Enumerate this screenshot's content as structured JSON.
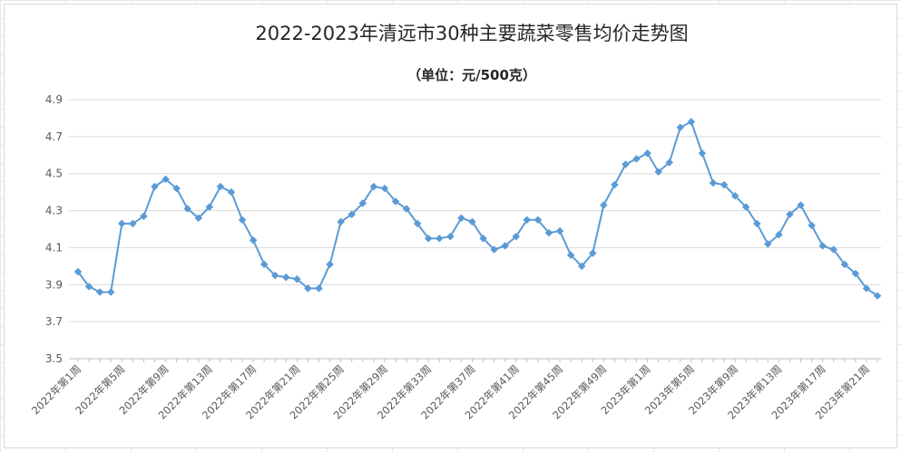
{
  "chart_data": {
    "type": "line",
    "title": "2022-2023年清远市30种主要蔬菜零售均价走势图",
    "subtitle": "（单位：元/500克）",
    "ylim": [
      3.5,
      4.9
    ],
    "yticks": [
      "3.5",
      "3.7",
      "3.9",
      "4.1",
      "4.3",
      "4.5",
      "4.7",
      "4.9"
    ],
    "grid": true,
    "line_color": "#5b9bd5",
    "x": [
      "2022年第1周",
      "2022年第2周",
      "2022年第3周",
      "2022年第4周",
      "2022年第5周",
      "2022年第6周",
      "2022年第7周",
      "2022年第8周",
      "2022年第9周",
      "2022年第10周",
      "2022年第11周",
      "2022年第12周",
      "2022年第13周",
      "2022年第14周",
      "2022年第15周",
      "2022年第16周",
      "2022年第17周",
      "2022年第18周",
      "2022年第19周",
      "2022年第20周",
      "2022年第21周",
      "2022年第22周",
      "2022年第23周",
      "2022年第24周",
      "2022年第25周",
      "2022年第26周",
      "2022年第27周",
      "2022年第28周",
      "2022年第29周",
      "2022年第30周",
      "2022年第31周",
      "2022年第32周",
      "2022年第33周",
      "2022年第34周",
      "2022年第35周",
      "2022年第36周",
      "2022年第37周",
      "2022年第38周",
      "2022年第39周",
      "2022年第40周",
      "2022年第41周",
      "2022年第42周",
      "2022年第43周",
      "2022年第44周",
      "2022年第45周",
      "2022年第46周",
      "2022年第47周",
      "2022年第48周",
      "2022年第49周",
      "2022年第50周",
      "2022年第51周",
      "2022年第52周",
      "2023年第1周",
      "2023年第2周",
      "2023年第3周",
      "2023年第4周",
      "2023年第5周",
      "2023年第6周",
      "2023年第7周",
      "2023年第8周",
      "2023年第9周",
      "2023年第10周",
      "2023年第11周",
      "2023年第12周",
      "2023年第13周",
      "2023年第14周",
      "2023年第15周",
      "2023年第16周",
      "2023年第17周",
      "2023年第18周",
      "2023年第19周",
      "2023年第20周",
      "2023年第21周",
      "2023年第22周"
    ],
    "shown_xtick_every": 4,
    "series": [
      {
        "values": [
          3.97,
          3.89,
          3.86,
          3.86,
          4.23,
          4.23,
          4.27,
          4.43,
          4.47,
          4.42,
          4.31,
          4.26,
          4.32,
          4.43,
          4.4,
          4.25,
          4.14,
          4.01,
          3.95,
          3.94,
          3.93,
          3.88,
          3.88,
          4.01,
          4.24,
          4.28,
          4.34,
          4.43,
          4.42,
          4.35,
          4.31,
          4.23,
          4.15,
          4.15,
          4.16,
          4.26,
          4.24,
          4.15,
          4.09,
          4.11,
          4.16,
          4.25,
          4.25,
          4.18,
          4.19,
          4.06,
          4.0,
          4.07,
          4.33,
          4.44,
          4.55,
          4.58,
          4.61,
          4.51,
          4.56,
          4.75,
          4.78,
          4.61,
          4.45,
          4.44,
          4.38,
          4.32,
          4.23,
          4.12,
          4.17,
          4.28,
          4.33,
          4.22,
          4.11,
          4.09,
          4.01,
          3.96,
          3.88,
          3.84
        ]
      }
    ]
  }
}
